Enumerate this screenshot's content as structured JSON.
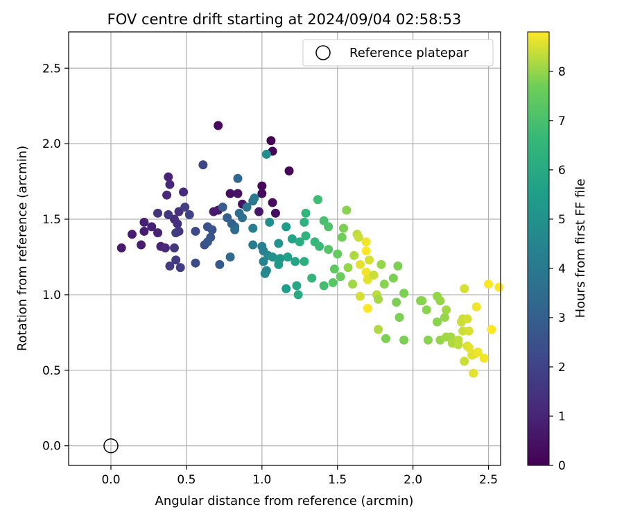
{
  "chart_data": {
    "type": "scatter",
    "title": "FOV centre drift starting at 2024/09/04 02:58:53",
    "xlabel": "Angular distance from reference (arcmin)",
    "ylabel": "Rotation from reference (arcmin)",
    "xlim": [
      -0.28,
      2.58
    ],
    "ylim": [
      -0.13,
      2.74
    ],
    "x_ticks": [
      0.0,
      0.5,
      1.0,
      1.5,
      2.0,
      2.5
    ],
    "x_tick_labels": [
      "0.0",
      "0.5",
      "1.0",
      "1.5",
      "2.0",
      "2.5"
    ],
    "y_ticks": [
      0.0,
      0.5,
      1.0,
      1.5,
      2.0,
      2.5
    ],
    "y_tick_labels": [
      "0.0",
      "0.5",
      "1.0",
      "1.5",
      "2.0",
      "2.5"
    ],
    "grid": true,
    "legend": {
      "placement": "top-right",
      "entries": [
        "Reference platepar"
      ]
    },
    "reference_point": {
      "x": 0.0,
      "y": 0.0
    },
    "colorbar": {
      "label": "Hours from first FF file",
      "colormap": "viridis",
      "range": [
        0,
        8.8
      ],
      "ticks": [
        0,
        1,
        2,
        3,
        4,
        5,
        6,
        7,
        8
      ],
      "tick_labels": [
        "0",
        "1",
        "2",
        "3",
        "4",
        "5",
        "6",
        "7",
        "8"
      ]
    },
    "series": [
      {
        "points": [
          [
            1.06,
            2.02,
            0.0
          ],
          [
            1.07,
            1.95,
            0.1
          ],
          [
            1.18,
            1.82,
            0.1
          ],
          [
            0.71,
            2.12,
            0.2
          ],
          [
            1.0,
            1.72,
            0.2
          ],
          [
            1.0,
            1.67,
            0.3
          ],
          [
            1.07,
            1.61,
            0.3
          ],
          [
            1.09,
            1.54,
            0.4
          ],
          [
            0.79,
            1.67,
            0.4
          ],
          [
            0.84,
            1.67,
            0.5
          ],
          [
            0.87,
            1.6,
            0.5
          ],
          [
            0.98,
            1.55,
            0.6
          ],
          [
            0.68,
            1.55,
            0.7
          ],
          [
            0.71,
            1.56,
            0.7
          ],
          [
            0.07,
            1.31,
            0.7
          ],
          [
            0.2,
            1.33,
            0.8
          ],
          [
            0.22,
            1.42,
            0.8
          ],
          [
            0.14,
            1.4,
            0.8
          ],
          [
            0.22,
            1.48,
            0.9
          ],
          [
            0.27,
            1.45,
            0.9
          ],
          [
            0.31,
            1.41,
            1.0
          ],
          [
            0.33,
            1.32,
            1.0
          ],
          [
            0.38,
            1.78,
            1.0
          ],
          [
            0.39,
            1.73,
            1.1
          ],
          [
            0.37,
            1.66,
            1.1
          ],
          [
            0.48,
            1.68,
            1.2
          ],
          [
            0.36,
            1.31,
            1.2
          ],
          [
            0.42,
            1.5,
            1.3
          ],
          [
            0.44,
            1.47,
            1.4
          ],
          [
            0.45,
            1.55,
            1.4
          ],
          [
            0.45,
            1.42,
            1.5
          ],
          [
            0.31,
            1.54,
            1.5
          ],
          [
            0.38,
            1.53,
            1.6
          ],
          [
            0.42,
            1.31,
            1.6
          ],
          [
            0.43,
            1.23,
            1.7
          ],
          [
            0.39,
            1.19,
            1.7
          ],
          [
            0.46,
            1.18,
            1.8
          ],
          [
            0.43,
            1.41,
            1.8
          ],
          [
            0.49,
            1.58,
            1.9
          ],
          [
            0.52,
            1.53,
            2.0
          ],
          [
            0.61,
            1.86,
            2.1
          ],
          [
            0.56,
            1.42,
            2.2
          ],
          [
            0.56,
            1.21,
            2.3
          ],
          [
            0.62,
            1.33,
            2.4
          ],
          [
            0.64,
            1.45,
            2.5
          ],
          [
            0.67,
            1.43,
            2.6
          ],
          [
            0.66,
            1.38,
            2.6
          ],
          [
            0.64,
            1.35,
            2.7
          ],
          [
            0.72,
            1.2,
            2.8
          ],
          [
            0.74,
            1.58,
            2.9
          ],
          [
            0.77,
            1.51,
            3.0
          ],
          [
            0.8,
            1.47,
            3.1
          ],
          [
            0.82,
            1.45,
            3.2
          ],
          [
            0.84,
            1.77,
            3.3
          ],
          [
            0.79,
            1.25,
            3.4
          ],
          [
            0.82,
            1.43,
            3.5
          ],
          [
            0.85,
            1.54,
            3.6
          ],
          [
            0.87,
            1.51,
            3.7
          ],
          [
            0.9,
            1.58,
            3.8
          ],
          [
            0.94,
            1.62,
            3.9
          ],
          [
            0.95,
            1.64,
            4.0
          ],
          [
            0.94,
            1.33,
            4.1
          ],
          [
            0.94,
            1.44,
            4.2
          ],
          [
            1.0,
            1.32,
            4.3
          ],
          [
            1.01,
            1.29,
            4.4
          ],
          [
            1.01,
            1.22,
            4.4
          ],
          [
            1.03,
            1.16,
            4.5
          ],
          [
            1.04,
            1.26,
            4.6
          ],
          [
            1.02,
            1.14,
            4.7
          ],
          [
            1.03,
            1.93,
            4.8
          ],
          [
            1.05,
            1.48,
            4.9
          ],
          [
            1.07,
            1.25,
            5.0
          ],
          [
            1.11,
            1.34,
            5.1
          ],
          [
            1.11,
            1.23,
            5.2
          ],
          [
            1.12,
            1.24,
            5.2
          ],
          [
            1.11,
            1.2,
            5.3
          ],
          [
            1.16,
            1.45,
            5.4
          ],
          [
            1.16,
            1.04,
            5.5
          ],
          [
            1.17,
            1.25,
            5.6
          ],
          [
            1.2,
            1.37,
            5.7
          ],
          [
            1.22,
            1.22,
            5.8
          ],
          [
            1.23,
            1.06,
            5.9
          ],
          [
            1.24,
            1.0,
            6.0
          ],
          [
            1.25,
            1.35,
            6.1
          ],
          [
            1.28,
            1.22,
            6.2
          ],
          [
            1.28,
            1.48,
            6.3
          ],
          [
            1.29,
            1.39,
            6.4
          ],
          [
            1.29,
            1.54,
            6.5
          ],
          [
            1.33,
            1.11,
            6.5
          ],
          [
            1.35,
            1.35,
            6.6
          ],
          [
            1.38,
            1.32,
            6.7
          ],
          [
            1.37,
            1.63,
            6.8
          ],
          [
            1.41,
            1.06,
            6.9
          ],
          [
            1.41,
            1.49,
            7.0
          ],
          [
            1.44,
            1.45,
            7.1
          ],
          [
            1.44,
            1.3,
            7.2
          ],
          [
            1.47,
            1.08,
            7.3
          ],
          [
            1.48,
            1.17,
            7.4
          ],
          [
            1.5,
            1.27,
            7.5
          ],
          [
            1.52,
            1.12,
            7.6
          ],
          [
            1.53,
            1.38,
            7.7
          ],
          [
            1.54,
            1.44,
            7.8
          ],
          [
            1.56,
            1.56,
            7.9
          ],
          [
            1.57,
            1.18,
            8.0
          ],
          [
            1.6,
            1.07,
            8.1
          ],
          [
            1.61,
            1.26,
            8.2
          ],
          [
            1.63,
            1.4,
            8.3
          ],
          [
            1.64,
            1.38,
            8.4
          ],
          [
            1.65,
            0.99,
            8.5
          ],
          [
            1.65,
            1.2,
            8.6
          ],
          [
            1.69,
            1.35,
            8.7
          ],
          [
            1.69,
            1.29,
            8.8
          ],
          [
            1.7,
            0.91,
            8.8
          ],
          [
            1.69,
            1.15,
            8.7
          ],
          [
            1.7,
            1.1,
            8.6
          ],
          [
            1.71,
            1.23,
            8.5
          ],
          [
            1.74,
            1.13,
            8.4
          ],
          [
            1.76,
            1.0,
            8.3
          ],
          [
            1.77,
            0.77,
            8.2
          ],
          [
            1.77,
            0.97,
            8.1
          ],
          [
            1.79,
            1.2,
            8.0
          ],
          [
            1.81,
            1.07,
            7.9
          ],
          [
            1.82,
            0.71,
            7.8
          ],
          [
            1.87,
            1.11,
            7.8
          ],
          [
            1.89,
            0.95,
            7.8
          ],
          [
            1.9,
            1.19,
            7.8
          ],
          [
            1.91,
            0.85,
            7.8
          ],
          [
            1.94,
            1.01,
            7.8
          ],
          [
            1.94,
            0.7,
            7.8
          ],
          [
            2.05,
            0.96,
            7.9
          ],
          [
            2.06,
            0.96,
            7.9
          ],
          [
            2.09,
            0.9,
            7.9
          ],
          [
            2.1,
            0.7,
            7.9
          ],
          [
            2.16,
            0.82,
            7.9
          ],
          [
            2.16,
            0.99,
            8.0
          ],
          [
            2.18,
            0.96,
            8.0
          ],
          [
            2.18,
            0.7,
            8.0
          ],
          [
            2.21,
            0.85,
            8.0
          ],
          [
            2.22,
            0.9,
            8.1
          ],
          [
            2.22,
            0.72,
            8.1
          ],
          [
            2.25,
            0.72,
            8.1
          ],
          [
            2.26,
            0.68,
            8.2
          ],
          [
            2.28,
            0.68,
            8.2
          ],
          [
            2.3,
            0.67,
            8.3
          ],
          [
            2.3,
            0.7,
            8.3
          ],
          [
            2.32,
            0.82,
            8.4
          ],
          [
            2.33,
            0.76,
            8.4
          ],
          [
            2.33,
            0.84,
            8.4
          ],
          [
            2.34,
            0.56,
            8.4
          ],
          [
            2.36,
            0.66,
            8.5
          ],
          [
            2.34,
            1.04,
            8.5
          ],
          [
            2.36,
            0.84,
            8.5
          ],
          [
            2.37,
            0.76,
            8.5
          ],
          [
            2.37,
            0.65,
            8.6
          ],
          [
            2.39,
            0.6,
            8.6
          ],
          [
            2.4,
            0.48,
            8.6
          ],
          [
            2.41,
            0.61,
            8.6
          ],
          [
            2.42,
            0.92,
            8.7
          ],
          [
            2.43,
            0.62,
            8.7
          ],
          [
            2.47,
            0.58,
            8.7
          ],
          [
            2.5,
            1.07,
            8.8
          ],
          [
            2.52,
            0.77,
            8.8
          ],
          [
            2.57,
            1.05,
            8.8
          ]
        ]
      }
    ]
  }
}
